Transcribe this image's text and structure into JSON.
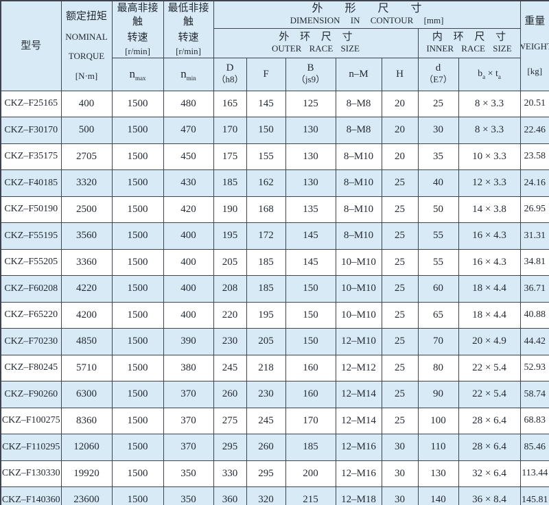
{
  "colors": {
    "stripe_blue": "#d7eaf6",
    "border": "#3d4450",
    "text": "#242a33",
    "row_white": "#ffffff"
  },
  "table": {
    "header": {
      "model": "型号",
      "torque_lines": [
        "额定扭矩",
        "NOMINAL",
        "TORQUE",
        "[N·m]"
      ],
      "nmax_title_lines": [
        "最高非接触",
        "转速",
        "[r/min]"
      ],
      "nmax_symbol": {
        "base": "n",
        "sub": "max"
      },
      "nmin_title_lines": [
        "最低非接触",
        "转速",
        "[r/min]"
      ],
      "nmin_symbol": {
        "base": "n",
        "sub": "min"
      },
      "dimension_cn": "外 形 尺 寸",
      "dimension_en": "DIMENSION IN CONTOUR [mm]",
      "outer_cn": "外 环 尺 寸",
      "outer_en": "OUTER RACE SIZE",
      "inner_cn": "内 环 尺 寸",
      "inner_en": "INNER RACE SIZE",
      "col_D_lines": [
        "D",
        "（h8）"
      ],
      "col_F": "F",
      "col_B_lines": [
        "B",
        "（js9）"
      ],
      "col_nM": "n–M",
      "col_H": "H",
      "col_d_lines": [
        "d",
        "（E7）"
      ],
      "col_bt": {
        "base1": "b",
        "sub1": "a",
        "times": "×",
        "base2": "t",
        "sub2": "a"
      },
      "weight_lines": [
        "重量",
        "WEIGHT",
        "[kg]"
      ]
    },
    "column_keys": [
      "model",
      "torque",
      "nmax",
      "nmin",
      "D",
      "F",
      "B",
      "nM",
      "H",
      "d",
      "bt",
      "weight"
    ],
    "rows": [
      [
        "CKZ–F25165",
        "400",
        "1500",
        "480",
        "165",
        "145",
        "125",
        "8–M8",
        "20",
        "25",
        "8 × 3.3",
        "20.51"
      ],
      [
        "CKZ–F30170",
        "500",
        "1500",
        "470",
        "170",
        "150",
        "130",
        "8–M8",
        "20",
        "30",
        "8 × 3.3",
        "22.46"
      ],
      [
        "CKZ–F35175",
        "2705",
        "1500",
        "450",
        "175",
        "155",
        "130",
        "8–M10",
        "20",
        "35",
        "10 × 3.3",
        "23.58"
      ],
      [
        "CKZ–F40185",
        "3320",
        "1500",
        "430",
        "185",
        "162",
        "130",
        "8–M10",
        "25",
        "40",
        "12 × 3.3",
        "24.16"
      ],
      [
        "CKZ–F50190",
        "2500",
        "1500",
        "420",
        "190",
        "168",
        "135",
        "8–M10",
        "25",
        "50",
        "14 × 3.8",
        "26.95"
      ],
      [
        "CKZ–F55195",
        "3560",
        "1500",
        "400",
        "195",
        "172",
        "145",
        "8–M10",
        "25",
        "55",
        "16 × 4.3",
        "31.31"
      ],
      [
        "CKZ–F55205",
        "3360",
        "1500",
        "400",
        "205",
        "185",
        "145",
        "10–M10",
        "25",
        "55",
        "16 × 4.3",
        "34.81"
      ],
      [
        "CKZ–F60208",
        "4220",
        "1500",
        "400",
        "208",
        "185",
        "150",
        "10–M10",
        "25",
        "60",
        "18 × 4.4",
        "36.71"
      ],
      [
        "CKZ–F65220",
        "4200",
        "1500",
        "400",
        "220",
        "195",
        "150",
        "10–M10",
        "25",
        "65",
        "18 × 4.4",
        "40.88"
      ],
      [
        "CKZ–F70230",
        "4850",
        "1500",
        "390",
        "230",
        "205",
        "150",
        "12–M10",
        "25",
        "70",
        "20 × 4.9",
        "44.42"
      ],
      [
        "CKZ–F80245",
        "5710",
        "1500",
        "380",
        "245",
        "218",
        "160",
        "12–M12",
        "25",
        "80",
        "22 × 5.4",
        "52.93"
      ],
      [
        "CKZ–F90260",
        "6300",
        "1500",
        "370",
        "260",
        "230",
        "160",
        "12–M14",
        "25",
        "90",
        "22 × 5.4",
        "58.74"
      ],
      [
        "CKZ–F100275",
        "8360",
        "1500",
        "370",
        "275",
        "245",
        "170",
        "12–M14",
        "25",
        "100",
        "28 × 6.4",
        "68.83"
      ],
      [
        "CKZ–F110295",
        "12060",
        "1500",
        "370",
        "295",
        "260",
        "185",
        "12–M16",
        "30",
        "110",
        "28 × 6.4",
        "85.46"
      ],
      [
        "CKZ–F130330",
        "19920",
        "1500",
        "350",
        "330",
        "295",
        "200",
        "12–M16",
        "30",
        "130",
        "32 × 6.4",
        "113.44"
      ],
      [
        "CKZ–F140360",
        "23600",
        "1500",
        "350",
        "360",
        "320",
        "215",
        "12–M18",
        "30",
        "140",
        "36 × 8.4",
        "145.81"
      ]
    ]
  }
}
